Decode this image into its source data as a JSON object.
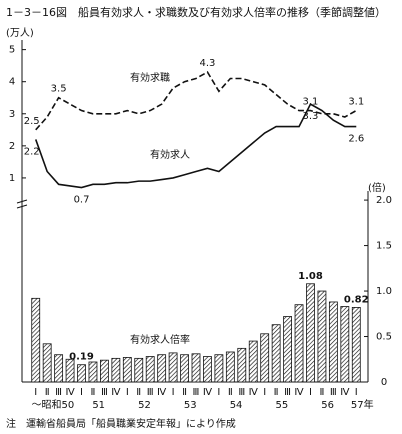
{
  "title": "1－3－16図　船員有効求人・求職数及び有効求人倍率の推移（季節調整値）",
  "note": "注　運輸省船員局「船員職業安定年報」により作成",
  "chart_data": {
    "type": "line_bar",
    "ylabel": "(万人)",
    "y2label": "(倍)",
    "categories": [
      "Ⅰ",
      "Ⅱ",
      "Ⅲ",
      "Ⅳ",
      "Ⅰ",
      "Ⅱ",
      "Ⅲ",
      "Ⅳ",
      "Ⅰ",
      "Ⅱ",
      "Ⅲ",
      "Ⅳ",
      "Ⅰ",
      "Ⅱ",
      "Ⅲ",
      "Ⅳ",
      "Ⅰ",
      "Ⅱ",
      "Ⅲ",
      "Ⅳ",
      "Ⅰ",
      "Ⅱ",
      "Ⅲ",
      "Ⅳ",
      "Ⅰ",
      "Ⅱ",
      "Ⅲ",
      "Ⅳ",
      "Ⅰ"
    ],
    "years": [
      "～昭和50",
      "51",
      "52",
      "53",
      "54",
      "55",
      "56",
      "57年"
    ],
    "ylim": [
      0,
      5.3
    ],
    "yticks": [
      1,
      2,
      3,
      4,
      5
    ],
    "y2lim": [
      0,
      2.1
    ],
    "y2ticks": [
      0,
      0.5,
      {
        "value": 1,
        "label": "1.0"
      },
      1.5,
      {
        "value": 2,
        "label": "2.0"
      }
    ],
    "series": [
      {
        "name": "有効求職",
        "color": "#111",
        "dash": true,
        "values": [
          2.5,
          2.9,
          3.5,
          3.3,
          3.1,
          3.0,
          3.0,
          3.0,
          3.1,
          3.0,
          3.1,
          3.3,
          3.8,
          4.0,
          4.1,
          4.3,
          3.7,
          4.1,
          4.1,
          4.0,
          3.9,
          3.6,
          3.3,
          3.1,
          3.1,
          3.0,
          3.0,
          2.9,
          3.1
        ],
        "value_labels": [
          "2.5",
          null,
          "3.5",
          null,
          null,
          null,
          null,
          null,
          null,
          null,
          null,
          null,
          null,
          null,
          null,
          "4.3",
          null,
          null,
          null,
          null,
          null,
          null,
          null,
          null,
          "3.1",
          null,
          null,
          null,
          "3.1"
        ]
      },
      {
        "name": "有効求人",
        "color": "#111",
        "dash": false,
        "values": [
          2.2,
          1.2,
          0.8,
          0.75,
          0.7,
          0.8,
          0.8,
          0.85,
          0.85,
          0.9,
          0.9,
          0.95,
          1.0,
          1.1,
          1.2,
          1.3,
          1.2,
          1.5,
          1.8,
          2.1,
          2.4,
          2.6,
          2.6,
          2.6,
          3.3,
          3.1,
          2.8,
          2.6,
          2.6
        ],
        "value_labels": [
          "2.2",
          null,
          null,
          null,
          "0.7",
          null,
          null,
          null,
          null,
          null,
          null,
          null,
          null,
          null,
          null,
          null,
          null,
          null,
          null,
          null,
          null,
          null,
          null,
          null,
          "3.3",
          null,
          null,
          null,
          "2.6"
        ]
      },
      {
        "name": "有効求人倍率",
        "color": "#111",
        "axis": "y2",
        "kind": "bar",
        "values": [
          0.92,
          0.42,
          0.3,
          0.25,
          0.19,
          0.22,
          0.24,
          0.26,
          0.27,
          0.26,
          0.28,
          0.3,
          0.32,
          0.3,
          0.31,
          0.28,
          0.3,
          0.33,
          0.37,
          0.45,
          0.53,
          0.63,
          0.72,
          0.85,
          1.08,
          1.0,
          0.88,
          0.83,
          0.82
        ],
        "value_labels": [
          null,
          null,
          null,
          null,
          "0.19",
          null,
          null,
          null,
          null,
          null,
          null,
          null,
          null,
          null,
          null,
          null,
          null,
          null,
          null,
          null,
          null,
          null,
          null,
          null,
          "1.08",
          null,
          null,
          null,
          "0.82"
        ]
      }
    ]
  }
}
